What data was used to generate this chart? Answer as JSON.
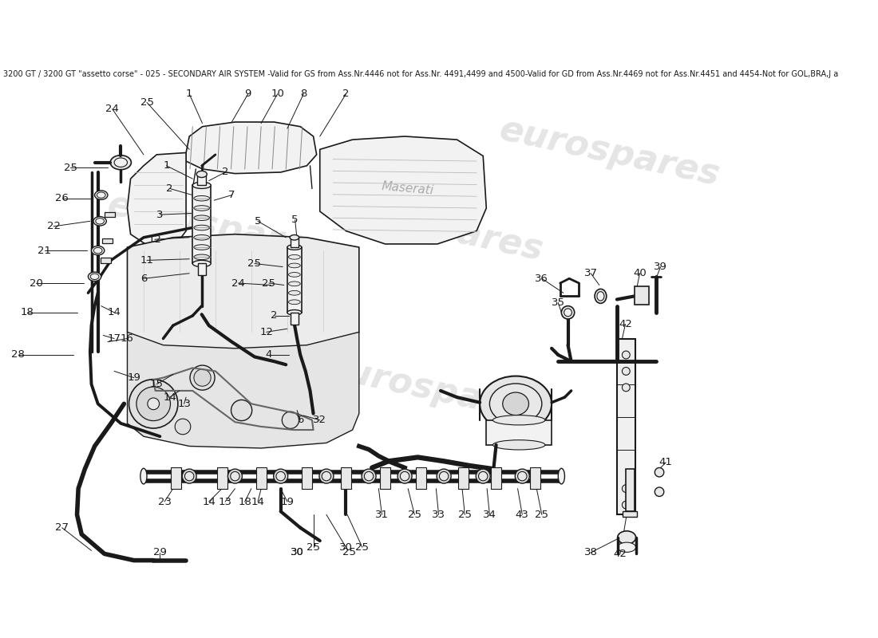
{
  "title": "3200 GT / 3200 GT \"assetto corse\" - 025 - SECONDARY AIR SYSTEM -Valid for GS from Ass.Nr.4446 not for Ass.Nr. 4491,4499 and 4500-Valid for GD from Ass.Nr.4469 not for Ass.Nr.4451 and 4454-Not for GOL,BRA,J a",
  "background_color": "#ffffff",
  "line_color": "#1a1a1a",
  "gray_fill": "#e8e8e8",
  "light_fill": "#f2f2f2",
  "title_fontsize": 7.0,
  "label_fontsize": 9.5,
  "watermark_text": "eurospares",
  "watermark_color": "#d0d0d0",
  "watermark_alpha": 0.55
}
